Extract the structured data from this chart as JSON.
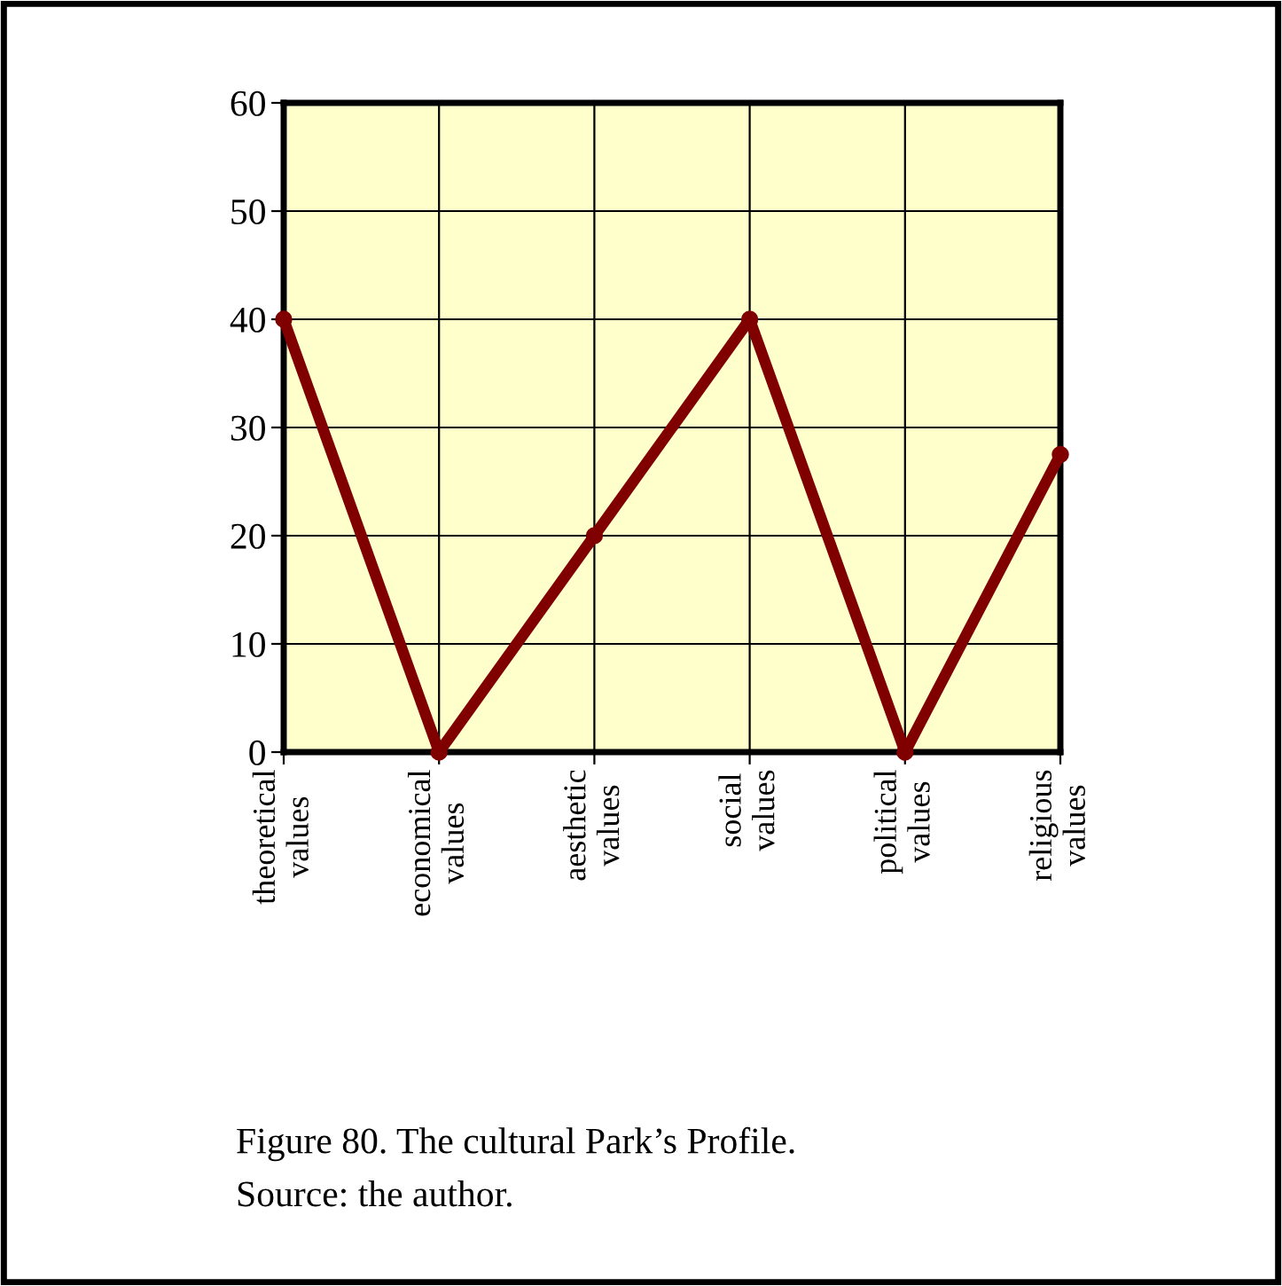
{
  "chart_data": {
    "type": "line",
    "categories": [
      "theoretical values",
      "economical values",
      "aesthetic values",
      "social values",
      "political values",
      "religious values"
    ],
    "series": [
      {
        "color": "#800000",
        "values": [
          40,
          0,
          20,
          40,
          0,
          27.5
        ]
      }
    ],
    "ylim": [
      0,
      60
    ],
    "yticks": [
      0,
      10,
      20,
      30,
      40,
      50,
      60
    ],
    "grid": true,
    "marker": "circle",
    "line_style": "solid",
    "annotations": [
      "Figure 80. The cultural Park’s Profile.",
      "Source: the author."
    ]
  }
}
